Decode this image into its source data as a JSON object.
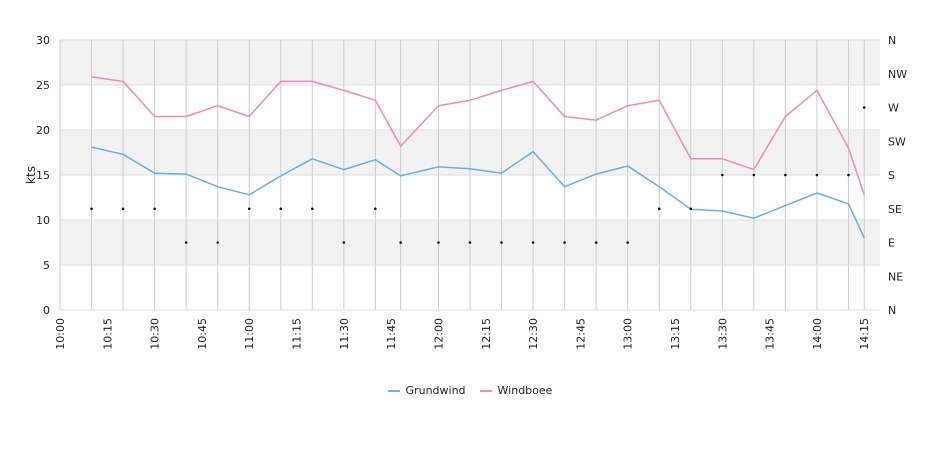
{
  "chart_data": {
    "type": "line",
    "x": [
      "10:10",
      "10:20",
      "10:30",
      "10:40",
      "10:50",
      "11:00",
      "11:10",
      "11:20",
      "11:30",
      "11:40",
      "11:48",
      "12:00",
      "12:10",
      "12:20",
      "12:30",
      "12:40",
      "12:50",
      "13:00",
      "13:10",
      "13:20",
      "13:30",
      "13:40",
      "13:50",
      "14:00",
      "14:10",
      "14:15"
    ],
    "x_ticks": [
      "10:00",
      "10:15",
      "10:30",
      "10:45",
      "11:00",
      "11:15",
      "11:30",
      "11:45",
      "12:00",
      "12:15",
      "12:30",
      "12:45",
      "13:00",
      "13:15",
      "13:30",
      "13:45",
      "14:00",
      "14:15"
    ],
    "x_range": [
      "10:00",
      "14:20"
    ],
    "ylabel": "kts",
    "ylim": [
      0,
      30
    ],
    "y_ticks": [
      0,
      5,
      10,
      15,
      20,
      25,
      30
    ],
    "y2_ticks": [
      "N",
      "NE",
      "E",
      "SE",
      "S",
      "SW",
      "W",
      "NW",
      "N"
    ],
    "grid": true,
    "legend_position": "bottom",
    "series": [
      {
        "name": "Grundwind",
        "color": "#6aaee8",
        "values": [
          18.1,
          17.3,
          15.2,
          15.1,
          13.7,
          12.8,
          14.9,
          16.8,
          15.6,
          16.7,
          14.9,
          15.9,
          15.7,
          15.2,
          17.6,
          13.7,
          15.1,
          16.0,
          13.7,
          11.2,
          11.0,
          10.2,
          11.6,
          13.0,
          11.8,
          8.0
        ]
      },
      {
        "name": "Windboee",
        "color": "#ee8bbc",
        "values": [
          25.9,
          25.4,
          21.5,
          21.5,
          22.7,
          21.5,
          25.4,
          25.4,
          24.4,
          23.3,
          18.2,
          22.7,
          23.3,
          24.4,
          25.4,
          21.5,
          21.1,
          22.7,
          23.3,
          16.8,
          16.8,
          15.6,
          21.5,
          24.4,
          18.0,
          12.8
        ]
      }
    ],
    "direction": {
      "x": [
        "10:10",
        "10:20",
        "10:30",
        "10:40",
        "10:50",
        "11:00",
        "11:10",
        "11:20",
        "11:30",
        "11:40",
        "11:48",
        "12:00",
        "12:10",
        "12:20",
        "12:30",
        "12:40",
        "12:50",
        "13:00",
        "13:10",
        "13:20",
        "13:30",
        "13:40",
        "13:50",
        "14:00",
        "14:10",
        "14:15"
      ],
      "values": [
        "SE",
        "SE",
        "SE",
        "E",
        "E",
        "SE",
        "SE",
        "SE",
        "E",
        "SE",
        "E",
        "E",
        "E",
        "E",
        "E",
        "E",
        "E",
        "E",
        "SE",
        "SE",
        "S",
        "S",
        "S",
        "S",
        "S",
        "W"
      ]
    }
  }
}
